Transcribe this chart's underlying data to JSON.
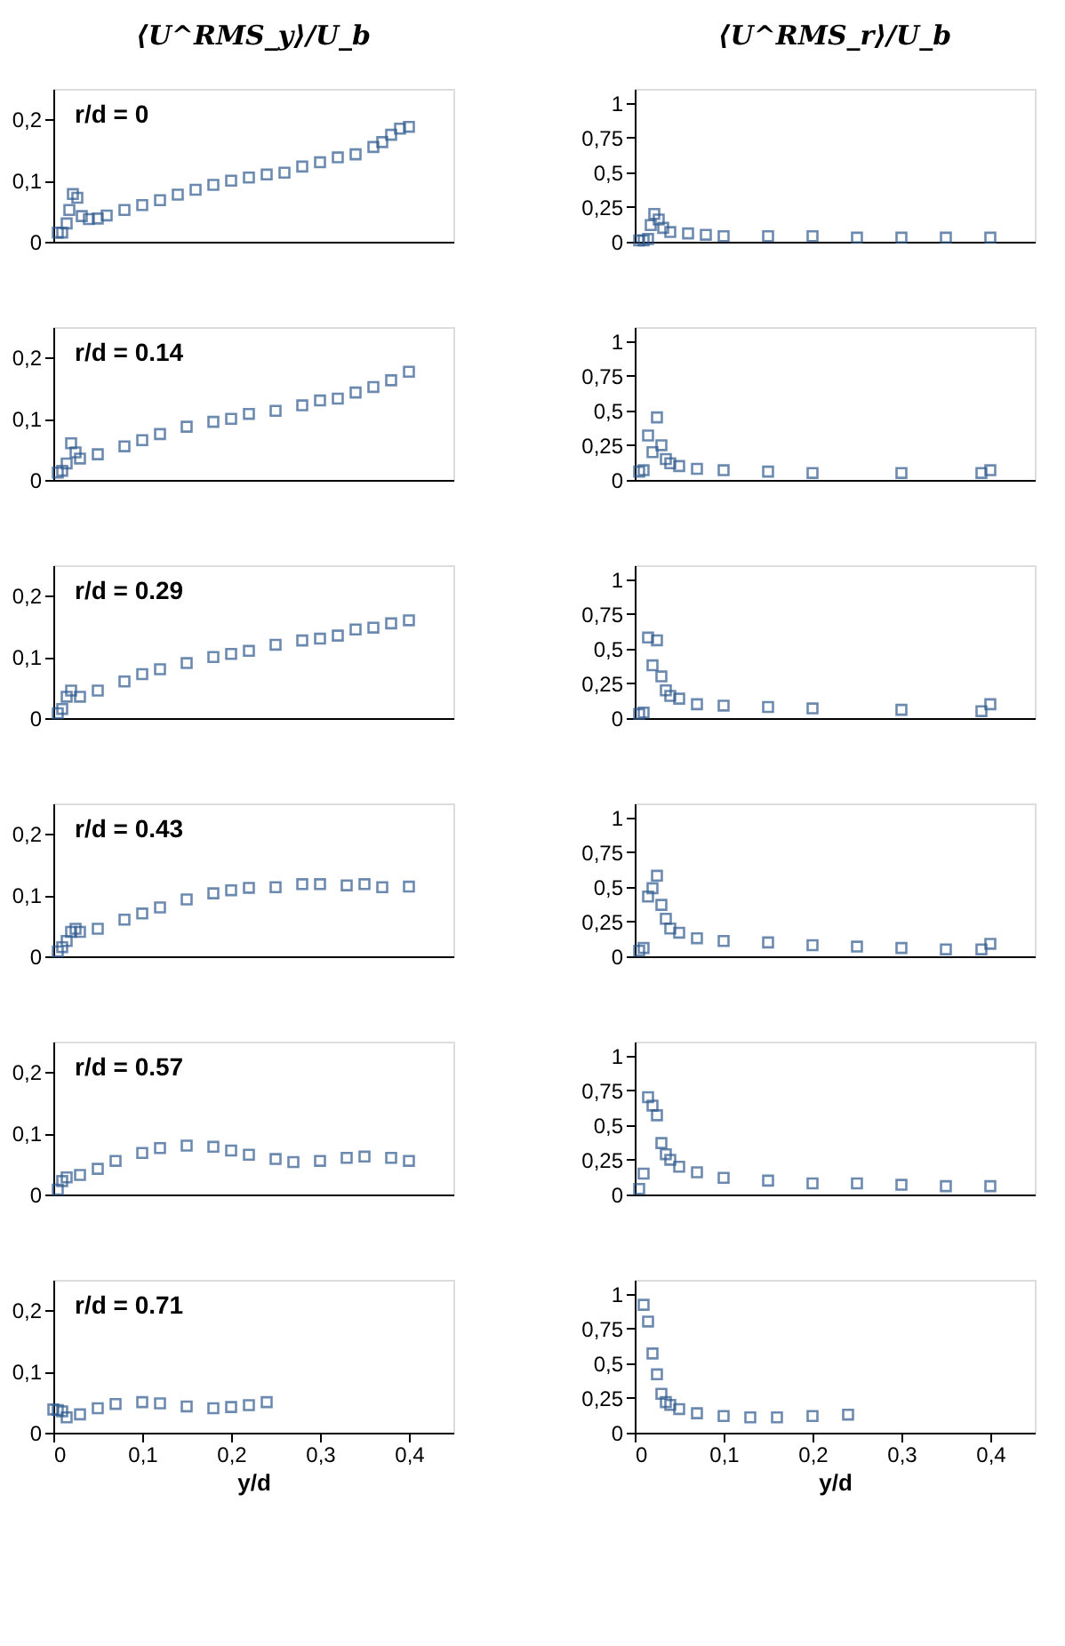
{
  "chart_data": [
    {
      "type": "scatter",
      "title": "⟨U^RMS_y⟩/U_b",
      "annotations": [
        "r/d = 0"
      ],
      "marker": "square",
      "grid": false,
      "tick_labels": "y",
      "xlim": [
        0,
        0.45
      ],
      "ylim": [
        0,
        0.25
      ],
      "yticks": [
        0,
        {
          "value": 0.1,
          "label": "0,1"
        },
        {
          "value": 0.2,
          "label": "0,2"
        }
      ],
      "series": [
        {
          "color": "#2e5a8e",
          "x": [
            0.005,
            0.01,
            0.015,
            0.018,
            0.022,
            0.027,
            0.032,
            0.04,
            0.05,
            0.06,
            0.08,
            0.1,
            0.12,
            0.14,
            0.16,
            0.18,
            0.2,
            0.22,
            0.24,
            0.26,
            0.28,
            0.3,
            0.32,
            0.34,
            0.36,
            0.37,
            0.38,
            0.39,
            0.4
          ],
          "values": [
            0.015,
            0.015,
            0.03,
            0.052,
            0.078,
            0.072,
            0.042,
            0.037,
            0.038,
            0.043,
            0.052,
            0.06,
            0.068,
            0.077,
            0.085,
            0.093,
            0.1,
            0.105,
            0.11,
            0.113,
            0.123,
            0.13,
            0.138,
            0.143,
            0.155,
            0.163,
            0.175,
            0.185,
            0.188
          ]
        }
      ]
    },
    {
      "type": "scatter",
      "title": "⟨U^RMS_r⟩/U_b",
      "marker": "square",
      "grid": false,
      "tick_labels": "y",
      "xlim": [
        0,
        0.45
      ],
      "ylim": [
        0,
        1.1
      ],
      "yticks": [
        0,
        {
          "value": 0.25,
          "label": "0,25"
        },
        {
          "value": 0.5,
          "label": "0,5"
        },
        {
          "value": 0.75,
          "label": "0,75"
        },
        1
      ],
      "series": [
        {
          "color": "#2e5a8e",
          "x": [
            0.005,
            0.01,
            0.015,
            0.018,
            0.022,
            0.027,
            0.032,
            0.04,
            0.06,
            0.08,
            0.1,
            0.15,
            0.2,
            0.25,
            0.3,
            0.35,
            0.4
          ],
          "values": [
            0.01,
            0.01,
            0.02,
            0.12,
            0.2,
            0.16,
            0.1,
            0.07,
            0.06,
            0.05,
            0.04,
            0.04,
            0.04,
            0.03,
            0.03,
            0.03,
            0.03
          ]
        }
      ]
    },
    {
      "type": "scatter",
      "annotations": [
        "r/d = 0.14"
      ],
      "marker": "square",
      "grid": false,
      "tick_labels": "y",
      "xlim": [
        0,
        0.45
      ],
      "ylim": [
        0,
        0.25
      ],
      "yticks": [
        0,
        {
          "value": 0.1,
          "label": "0,1"
        },
        {
          "value": 0.2,
          "label": "0,2"
        }
      ],
      "series": [
        {
          "color": "#2e5a8e",
          "x": [
            0.005,
            0.01,
            0.015,
            0.02,
            0.025,
            0.03,
            0.05,
            0.08,
            0.1,
            0.12,
            0.15,
            0.18,
            0.2,
            0.22,
            0.25,
            0.28,
            0.3,
            0.32,
            0.34,
            0.36,
            0.38,
            0.4
          ],
          "values": [
            0.012,
            0.015,
            0.027,
            0.06,
            0.045,
            0.035,
            0.042,
            0.055,
            0.065,
            0.075,
            0.087,
            0.095,
            0.1,
            0.108,
            0.113,
            0.122,
            0.13,
            0.133,
            0.143,
            0.152,
            0.163,
            0.177
          ]
        }
      ]
    },
    {
      "type": "scatter",
      "marker": "square",
      "grid": false,
      "tick_labels": "y",
      "xlim": [
        0,
        0.45
      ],
      "ylim": [
        0,
        1.1
      ],
      "yticks": [
        0,
        {
          "value": 0.25,
          "label": "0,25"
        },
        {
          "value": 0.5,
          "label": "0,5"
        },
        {
          "value": 0.75,
          "label": "0,75"
        },
        1
      ],
      "series": [
        {
          "color": "#2e5a8e",
          "x": [
            0.005,
            0.01,
            0.015,
            0.02,
            0.025,
            0.03,
            0.035,
            0.04,
            0.05,
            0.07,
            0.1,
            0.15,
            0.2,
            0.3,
            0.39,
            0.4
          ],
          "values": [
            0.06,
            0.07,
            0.32,
            0.2,
            0.45,
            0.25,
            0.15,
            0.12,
            0.1,
            0.08,
            0.07,
            0.06,
            0.05,
            0.05,
            0.05,
            0.07
          ]
        }
      ]
    },
    {
      "type": "scatter",
      "annotations": [
        "r/d = 0.29"
      ],
      "marker": "square",
      "grid": false,
      "tick_labels": "y",
      "xlim": [
        0,
        0.45
      ],
      "ylim": [
        0,
        0.25
      ],
      "yticks": [
        0,
        {
          "value": 0.1,
          "label": "0,1"
        },
        {
          "value": 0.2,
          "label": "0,2"
        }
      ],
      "series": [
        {
          "color": "#2e5a8e",
          "x": [
            0.005,
            0.01,
            0.015,
            0.02,
            0.03,
            0.05,
            0.08,
            0.1,
            0.12,
            0.15,
            0.18,
            0.2,
            0.22,
            0.25,
            0.28,
            0.3,
            0.32,
            0.34,
            0.36,
            0.38,
            0.4
          ],
          "values": [
            0.008,
            0.015,
            0.035,
            0.045,
            0.035,
            0.045,
            0.06,
            0.072,
            0.08,
            0.09,
            0.1,
            0.105,
            0.11,
            0.12,
            0.127,
            0.13,
            0.135,
            0.145,
            0.148,
            0.155,
            0.16
          ]
        }
      ]
    },
    {
      "type": "scatter",
      "marker": "square",
      "grid": false,
      "tick_labels": "y",
      "xlim": [
        0,
        0.45
      ],
      "ylim": [
        0,
        1.1
      ],
      "yticks": [
        0,
        {
          "value": 0.25,
          "label": "0,25"
        },
        {
          "value": 0.5,
          "label": "0,5"
        },
        {
          "value": 0.75,
          "label": "0,75"
        },
        1
      ],
      "series": [
        {
          "color": "#2e5a8e",
          "x": [
            0.005,
            0.01,
            0.015,
            0.02,
            0.025,
            0.03,
            0.035,
            0.04,
            0.05,
            0.07,
            0.1,
            0.15,
            0.2,
            0.3,
            0.39,
            0.4
          ],
          "values": [
            0.03,
            0.04,
            0.58,
            0.38,
            0.56,
            0.3,
            0.2,
            0.16,
            0.14,
            0.1,
            0.09,
            0.08,
            0.07,
            0.06,
            0.05,
            0.1
          ]
        }
      ]
    },
    {
      "type": "scatter",
      "annotations": [
        "r/d = 0.43"
      ],
      "marker": "square",
      "grid": false,
      "tick_labels": "y",
      "xlim": [
        0,
        0.45
      ],
      "ylim": [
        0,
        0.25
      ],
      "yticks": [
        0,
        {
          "value": 0.1,
          "label": "0,1"
        },
        {
          "value": 0.2,
          "label": "0,2"
        }
      ],
      "series": [
        {
          "color": "#2e5a8e",
          "x": [
            0.005,
            0.01,
            0.015,
            0.02,
            0.025,
            0.03,
            0.05,
            0.08,
            0.1,
            0.12,
            0.15,
            0.18,
            0.2,
            0.22,
            0.25,
            0.28,
            0.3,
            0.33,
            0.35,
            0.37,
            0.4
          ],
          "values": [
            0.008,
            0.015,
            0.025,
            0.04,
            0.045,
            0.04,
            0.045,
            0.06,
            0.07,
            0.08,
            0.093,
            0.103,
            0.108,
            0.112,
            0.113,
            0.118,
            0.118,
            0.116,
            0.118,
            0.113,
            0.114
          ]
        }
      ]
    },
    {
      "type": "scatter",
      "marker": "square",
      "grid": false,
      "tick_labels": "y",
      "xlim": [
        0,
        0.45
      ],
      "ylim": [
        0,
        1.1
      ],
      "yticks": [
        0,
        {
          "value": 0.25,
          "label": "0,25"
        },
        {
          "value": 0.5,
          "label": "0,5"
        },
        {
          "value": 0.75,
          "label": "0,75"
        },
        1
      ],
      "series": [
        {
          "color": "#2e5a8e",
          "x": [
            0.005,
            0.01,
            0.015,
            0.02,
            0.025,
            0.03,
            0.035,
            0.04,
            0.05,
            0.07,
            0.1,
            0.15,
            0.2,
            0.25,
            0.3,
            0.35,
            0.39,
            0.4
          ],
          "values": [
            0.04,
            0.06,
            0.43,
            0.49,
            0.58,
            0.37,
            0.27,
            0.2,
            0.17,
            0.13,
            0.11,
            0.1,
            0.08,
            0.07,
            0.06,
            0.05,
            0.05,
            0.09
          ]
        }
      ]
    },
    {
      "type": "scatter",
      "annotations": [
        "r/d = 0.57"
      ],
      "marker": "square",
      "grid": false,
      "tick_labels": "y",
      "xlim": [
        0,
        0.45
      ],
      "ylim": [
        0,
        0.25
      ],
      "yticks": [
        0,
        {
          "value": 0.1,
          "label": "0,1"
        },
        {
          "value": 0.2,
          "label": "0,2"
        }
      ],
      "series": [
        {
          "color": "#2e5a8e",
          "x": [
            0.005,
            0.01,
            0.015,
            0.03,
            0.05,
            0.07,
            0.1,
            0.12,
            0.15,
            0.18,
            0.2,
            0.22,
            0.25,
            0.27,
            0.3,
            0.33,
            0.35,
            0.38,
            0.4
          ],
          "values": [
            0.008,
            0.022,
            0.028,
            0.032,
            0.042,
            0.055,
            0.068,
            0.076,
            0.08,
            0.078,
            0.072,
            0.065,
            0.058,
            0.053,
            0.055,
            0.06,
            0.062,
            0.06,
            0.055
          ]
        }
      ]
    },
    {
      "type": "scatter",
      "marker": "square",
      "grid": false,
      "tick_labels": "y",
      "xlim": [
        0,
        0.45
      ],
      "ylim": [
        0,
        1.1
      ],
      "yticks": [
        0,
        {
          "value": 0.25,
          "label": "0,25"
        },
        {
          "value": 0.5,
          "label": "0,5"
        },
        {
          "value": 0.75,
          "label": "0,75"
        },
        1
      ],
      "series": [
        {
          "color": "#2e5a8e",
          "x": [
            0.005,
            0.01,
            0.015,
            0.02,
            0.025,
            0.03,
            0.035,
            0.04,
            0.05,
            0.07,
            0.1,
            0.15,
            0.2,
            0.25,
            0.3,
            0.35,
            0.4
          ],
          "values": [
            0.04,
            0.15,
            0.7,
            0.64,
            0.57,
            0.37,
            0.29,
            0.25,
            0.2,
            0.16,
            0.12,
            0.1,
            0.08,
            0.08,
            0.07,
            0.06,
            0.06
          ]
        }
      ]
    },
    {
      "type": "scatter",
      "annotations": [
        "r/d = 0.71"
      ],
      "xlabel": "y/d",
      "marker": "square",
      "grid": false,
      "xlim": [
        0,
        0.45
      ],
      "xticks": [
        0,
        {
          "value": 0.1,
          "label": "0,1"
        },
        {
          "value": 0.2,
          "label": "0,2"
        },
        {
          "value": 0.3,
          "label": "0,3"
        },
        {
          "value": 0.4,
          "label": "0,4"
        }
      ],
      "ylim": [
        0,
        0.25
      ],
      "yticks": [
        0,
        {
          "value": 0.1,
          "label": "0,1"
        },
        {
          "value": 0.2,
          "label": "0,2"
        }
      ],
      "series": [
        {
          "color": "#2e5a8e",
          "x": [
            0.0,
            0.005,
            0.01,
            0.015,
            0.03,
            0.05,
            0.07,
            0.1,
            0.12,
            0.15,
            0.18,
            0.2,
            0.22,
            0.24
          ],
          "values": [
            0.038,
            0.037,
            0.035,
            0.025,
            0.03,
            0.04,
            0.047,
            0.05,
            0.048,
            0.043,
            0.04,
            0.042,
            0.045,
            0.05
          ]
        }
      ]
    },
    {
      "type": "scatter",
      "xlabel": "y/d",
      "marker": "square",
      "grid": false,
      "xlim": [
        0,
        0.45
      ],
      "xticks": [
        0,
        {
          "value": 0.1,
          "label": "0,1"
        },
        {
          "value": 0.2,
          "label": "0,2"
        },
        {
          "value": 0.3,
          "label": "0,3"
        },
        {
          "value": 0.4,
          "label": "0,4"
        }
      ],
      "ylim": [
        0,
        1.1
      ],
      "yticks": [
        0,
        {
          "value": 0.25,
          "label": "0,25"
        },
        {
          "value": 0.5,
          "label": "0,5"
        },
        {
          "value": 0.75,
          "label": "0,75"
        },
        1
      ],
      "series": [
        {
          "color": "#2e5a8e",
          "x": [
            0.01,
            0.015,
            0.02,
            0.025,
            0.03,
            0.035,
            0.04,
            0.05,
            0.07,
            0.1,
            0.13,
            0.16,
            0.2,
            0.24
          ],
          "values": [
            0.92,
            0.8,
            0.57,
            0.42,
            0.28,
            0.22,
            0.2,
            0.17,
            0.14,
            0.12,
            0.11,
            0.11,
            0.12,
            0.13
          ]
        }
      ]
    }
  ]
}
